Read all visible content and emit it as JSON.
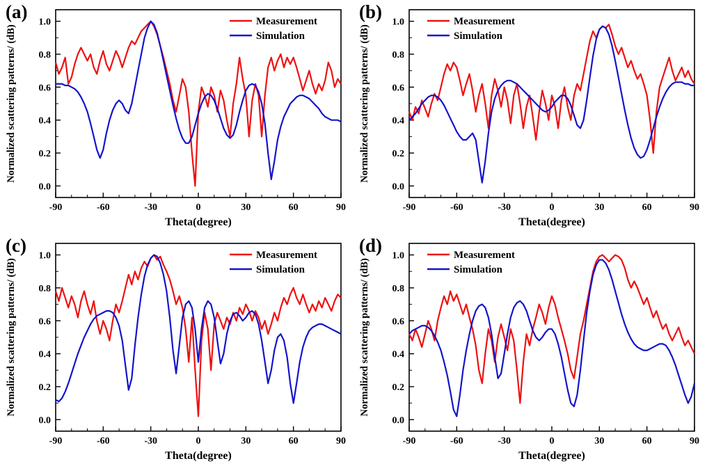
{
  "figure": {
    "background": "#ffffff",
    "text_color": "#000000"
  },
  "chart_data": [
    {
      "type": "line",
      "panel_label": "(a)",
      "xlabel": "Theta(degree)",
      "ylabel": "Normalized scattering patterns/ (dB)",
      "xlim": [
        -90,
        90
      ],
      "ylim": [
        -0.07,
        1.07
      ],
      "xticks": [
        -90,
        -60,
        -30,
        0,
        30,
        60,
        90
      ],
      "yticks": [
        "0.0",
        "0.2",
        "0.4",
        "0.6",
        "0.8",
        "1.0"
      ],
      "ytick_values": [
        0,
        0.2,
        0.4,
        0.6,
        0.8,
        1.0
      ],
      "grid": false,
      "legend_position": "top-right",
      "legend": [
        "Measurement",
        "Simulation"
      ],
      "series": [
        {
          "name": "Measurement",
          "color": "#ee1111",
          "x_start": -90,
          "x_step": 2,
          "y": [
            0.75,
            0.68,
            0.72,
            0.78,
            0.62,
            0.66,
            0.74,
            0.8,
            0.84,
            0.8,
            0.76,
            0.8,
            0.72,
            0.68,
            0.76,
            0.82,
            0.74,
            0.7,
            0.76,
            0.82,
            0.78,
            0.72,
            0.78,
            0.84,
            0.88,
            0.86,
            0.9,
            0.94,
            0.96,
            0.98,
            1.0,
            0.97,
            0.92,
            0.85,
            0.78,
            0.7,
            0.62,
            0.52,
            0.45,
            0.55,
            0.65,
            0.6,
            0.45,
            0.2,
            0.0,
            0.45,
            0.6,
            0.55,
            0.48,
            0.6,
            0.55,
            0.45,
            0.58,
            0.52,
            0.4,
            0.3,
            0.5,
            0.62,
            0.78,
            0.65,
            0.55,
            0.3,
            0.52,
            0.62,
            0.55,
            0.3,
            0.55,
            0.72,
            0.78,
            0.7,
            0.76,
            0.8,
            0.72,
            0.78,
            0.74,
            0.78,
            0.72,
            0.65,
            0.58,
            0.64,
            0.7,
            0.62,
            0.56,
            0.62,
            0.58,
            0.64,
            0.75,
            0.7,
            0.6,
            0.65,
            0.62
          ]
        },
        {
          "name": "Simulation",
          "color": "#1414cc",
          "x_start": -90,
          "x_step": 2,
          "y": [
            0.62,
            0.62,
            0.62,
            0.61,
            0.61,
            0.6,
            0.59,
            0.57,
            0.54,
            0.5,
            0.45,
            0.38,
            0.3,
            0.22,
            0.17,
            0.22,
            0.32,
            0.4,
            0.46,
            0.5,
            0.52,
            0.5,
            0.46,
            0.44,
            0.5,
            0.6,
            0.7,
            0.8,
            0.9,
            0.96,
            1.0,
            0.98,
            0.93,
            0.85,
            0.76,
            0.67,
            0.58,
            0.49,
            0.41,
            0.34,
            0.29,
            0.26,
            0.26,
            0.3,
            0.37,
            0.44,
            0.5,
            0.54,
            0.56,
            0.55,
            0.52,
            0.47,
            0.41,
            0.35,
            0.31,
            0.29,
            0.31,
            0.37,
            0.45,
            0.52,
            0.58,
            0.61,
            0.62,
            0.61,
            0.57,
            0.5,
            0.38,
            0.2,
            0.04,
            0.15,
            0.28,
            0.36,
            0.42,
            0.46,
            0.5,
            0.52,
            0.54,
            0.55,
            0.55,
            0.54,
            0.53,
            0.51,
            0.49,
            0.47,
            0.44,
            0.42,
            0.41,
            0.4,
            0.4,
            0.4,
            0.39
          ]
        }
      ]
    },
    {
      "type": "line",
      "panel_label": "(b)",
      "xlabel": "Theta(degree)",
      "ylabel": "Normalized scattering patterns/ (dB)",
      "xlim": [
        -90,
        90
      ],
      "ylim": [
        -0.07,
        1.07
      ],
      "xticks": [
        -90,
        -60,
        -30,
        0,
        30,
        60,
        90
      ],
      "yticks": [
        "0.0",
        "0.2",
        "0.4",
        "0.6",
        "0.8",
        "1.0"
      ],
      "ytick_values": [
        0,
        0.2,
        0.4,
        0.6,
        0.8,
        1.0
      ],
      "grid": false,
      "legend_position": "top-left",
      "legend": [
        "Measurement",
        "Simulation"
      ],
      "series": [
        {
          "name": "Measurement",
          "color": "#ee1111",
          "x_start": -90,
          "x_step": 2,
          "y": [
            0.45,
            0.4,
            0.48,
            0.44,
            0.52,
            0.47,
            0.42,
            0.5,
            0.56,
            0.52,
            0.6,
            0.68,
            0.74,
            0.7,
            0.75,
            0.72,
            0.64,
            0.55,
            0.62,
            0.68,
            0.58,
            0.45,
            0.55,
            0.62,
            0.5,
            0.35,
            0.55,
            0.65,
            0.58,
            0.48,
            0.6,
            0.52,
            0.38,
            0.55,
            0.62,
            0.5,
            0.35,
            0.48,
            0.55,
            0.42,
            0.28,
            0.45,
            0.58,
            0.5,
            0.4,
            0.55,
            0.48,
            0.35,
            0.52,
            0.6,
            0.48,
            0.4,
            0.55,
            0.62,
            0.58,
            0.68,
            0.78,
            0.88,
            0.94,
            0.9,
            0.95,
            0.97,
            0.96,
            0.98,
            0.92,
            0.85,
            0.8,
            0.84,
            0.78,
            0.72,
            0.76,
            0.7,
            0.65,
            0.68,
            0.62,
            0.55,
            0.4,
            0.2,
            0.45,
            0.6,
            0.66,
            0.72,
            0.78,
            0.7,
            0.64,
            0.68,
            0.72,
            0.66,
            0.7,
            0.65,
            0.62
          ]
        },
        {
          "name": "Simulation",
          "color": "#1414cc",
          "x_start": -90,
          "x_step": 2,
          "y": [
            0.4,
            0.42,
            0.44,
            0.47,
            0.5,
            0.52,
            0.54,
            0.55,
            0.55,
            0.54,
            0.52,
            0.49,
            0.45,
            0.41,
            0.37,
            0.33,
            0.3,
            0.28,
            0.28,
            0.3,
            0.32,
            0.28,
            0.15,
            0.02,
            0.15,
            0.32,
            0.45,
            0.53,
            0.58,
            0.61,
            0.63,
            0.64,
            0.64,
            0.63,
            0.62,
            0.6,
            0.58,
            0.56,
            0.54,
            0.52,
            0.5,
            0.48,
            0.46,
            0.45,
            0.46,
            0.48,
            0.51,
            0.53,
            0.55,
            0.55,
            0.53,
            0.49,
            0.43,
            0.37,
            0.35,
            0.4,
            0.52,
            0.66,
            0.79,
            0.89,
            0.95,
            0.97,
            0.96,
            0.92,
            0.85,
            0.76,
            0.66,
            0.56,
            0.46,
            0.37,
            0.29,
            0.23,
            0.19,
            0.17,
            0.18,
            0.22,
            0.28,
            0.35,
            0.42,
            0.48,
            0.53,
            0.57,
            0.6,
            0.62,
            0.63,
            0.63,
            0.63,
            0.62,
            0.62,
            0.61,
            0.61
          ]
        }
      ]
    },
    {
      "type": "line",
      "panel_label": "(c)",
      "xlabel": "Theta(degree)",
      "ylabel": "Normalized scattering patterns/ (dB)",
      "xlim": [
        -90,
        90
      ],
      "ylim": [
        -0.07,
        1.07
      ],
      "xticks": [
        -90,
        -60,
        -30,
        0,
        30,
        60,
        90
      ],
      "yticks": [
        "0.0",
        "0.2",
        "0.4",
        "0.6",
        "0.8",
        "1.0"
      ],
      "ytick_values": [
        0,
        0.2,
        0.4,
        0.6,
        0.8,
        1.0
      ],
      "grid": false,
      "legend_position": "top-right",
      "legend": [
        "Measurement",
        "Simulation"
      ],
      "series": [
        {
          "name": "Measurement",
          "color": "#ee1111",
          "x_start": -90,
          "x_step": 2,
          "y": [
            0.78,
            0.72,
            0.8,
            0.74,
            0.68,
            0.75,
            0.7,
            0.62,
            0.72,
            0.78,
            0.7,
            0.64,
            0.72,
            0.6,
            0.52,
            0.6,
            0.55,
            0.48,
            0.6,
            0.7,
            0.65,
            0.72,
            0.8,
            0.88,
            0.82,
            0.9,
            0.85,
            0.92,
            0.96,
            0.93,
            0.98,
            1.0,
            0.97,
            0.99,
            0.94,
            0.9,
            0.85,
            0.78,
            0.7,
            0.75,
            0.68,
            0.55,
            0.35,
            0.62,
            0.3,
            0.02,
            0.48,
            0.65,
            0.55,
            0.3,
            0.58,
            0.65,
            0.6,
            0.55,
            0.62,
            0.58,
            0.65,
            0.6,
            0.68,
            0.64,
            0.7,
            0.66,
            0.6,
            0.66,
            0.62,
            0.55,
            0.6,
            0.52,
            0.58,
            0.65,
            0.6,
            0.68,
            0.74,
            0.7,
            0.76,
            0.8,
            0.74,
            0.7,
            0.76,
            0.7,
            0.65,
            0.7,
            0.66,
            0.72,
            0.68,
            0.74,
            0.7,
            0.66,
            0.72,
            0.76,
            0.74
          ]
        },
        {
          "name": "Simulation",
          "color": "#1414cc",
          "x_start": -90,
          "x_step": 2,
          "y": [
            0.12,
            0.11,
            0.13,
            0.17,
            0.22,
            0.28,
            0.34,
            0.4,
            0.45,
            0.5,
            0.54,
            0.58,
            0.61,
            0.63,
            0.64,
            0.65,
            0.66,
            0.66,
            0.65,
            0.62,
            0.57,
            0.48,
            0.33,
            0.18,
            0.25,
            0.45,
            0.62,
            0.76,
            0.87,
            0.94,
            0.98,
            1.0,
            0.99,
            0.95,
            0.88,
            0.78,
            0.62,
            0.42,
            0.28,
            0.45,
            0.62,
            0.7,
            0.72,
            0.68,
            0.55,
            0.35,
            0.55,
            0.68,
            0.72,
            0.7,
            0.62,
            0.48,
            0.34,
            0.4,
            0.52,
            0.6,
            0.64,
            0.65,
            0.63,
            0.6,
            0.62,
            0.65,
            0.66,
            0.64,
            0.58,
            0.48,
            0.35,
            0.22,
            0.3,
            0.42,
            0.5,
            0.52,
            0.48,
            0.38,
            0.22,
            0.1,
            0.22,
            0.35,
            0.44,
            0.5,
            0.54,
            0.56,
            0.57,
            0.58,
            0.58,
            0.57,
            0.56,
            0.55,
            0.54,
            0.53,
            0.52
          ]
        }
      ]
    },
    {
      "type": "line",
      "panel_label": "(d)",
      "xlabel": "Theta(degree)",
      "ylabel": "Normalized scattering patterns/ (dB)",
      "xlim": [
        -90,
        90
      ],
      "ylim": [
        -0.07,
        1.07
      ],
      "xticks": [
        -90,
        -60,
        -30,
        0,
        30,
        60,
        90
      ],
      "yticks": [
        "0.0",
        "0.2",
        "0.4",
        "0.6",
        "0.8",
        "1.0"
      ],
      "ytick_values": [
        0,
        0.2,
        0.4,
        0.6,
        0.8,
        1.0
      ],
      "grid": false,
      "legend_position": "top-left",
      "legend": [
        "Measurement",
        "Simulation"
      ],
      "series": [
        {
          "name": "Measurement",
          "color": "#ee1111",
          "x_start": -90,
          "x_step": 2,
          "y": [
            0.52,
            0.48,
            0.55,
            0.5,
            0.44,
            0.52,
            0.6,
            0.55,
            0.48,
            0.6,
            0.68,
            0.75,
            0.7,
            0.78,
            0.72,
            0.76,
            0.7,
            0.64,
            0.7,
            0.62,
            0.55,
            0.45,
            0.3,
            0.22,
            0.4,
            0.55,
            0.48,
            0.35,
            0.5,
            0.58,
            0.5,
            0.42,
            0.55,
            0.48,
            0.3,
            0.1,
            0.35,
            0.52,
            0.45,
            0.55,
            0.62,
            0.7,
            0.65,
            0.58,
            0.68,
            0.75,
            0.7,
            0.62,
            0.55,
            0.48,
            0.4,
            0.3,
            0.25,
            0.38,
            0.52,
            0.6,
            0.7,
            0.8,
            0.9,
            0.96,
            0.99,
            1.0,
            0.98,
            0.96,
            0.98,
            1.0,
            0.99,
            0.97,
            0.92,
            0.85,
            0.8,
            0.84,
            0.8,
            0.75,
            0.7,
            0.74,
            0.68,
            0.62,
            0.66,
            0.6,
            0.55,
            0.58,
            0.52,
            0.48,
            0.52,
            0.56,
            0.5,
            0.45,
            0.48,
            0.44,
            0.4
          ]
        },
        {
          "name": "Simulation",
          "color": "#1414cc",
          "x_start": -90,
          "x_step": 2,
          "y": [
            0.52,
            0.54,
            0.55,
            0.56,
            0.57,
            0.57,
            0.56,
            0.54,
            0.51,
            0.47,
            0.42,
            0.35,
            0.27,
            0.17,
            0.06,
            0.02,
            0.15,
            0.3,
            0.42,
            0.52,
            0.6,
            0.66,
            0.69,
            0.7,
            0.68,
            0.62,
            0.52,
            0.38,
            0.25,
            0.28,
            0.4,
            0.52,
            0.62,
            0.68,
            0.71,
            0.72,
            0.7,
            0.66,
            0.6,
            0.54,
            0.5,
            0.48,
            0.5,
            0.53,
            0.55,
            0.55,
            0.52,
            0.46,
            0.38,
            0.28,
            0.18,
            0.1,
            0.08,
            0.15,
            0.3,
            0.48,
            0.65,
            0.78,
            0.88,
            0.94,
            0.97,
            0.97,
            0.95,
            0.91,
            0.85,
            0.78,
            0.71,
            0.64,
            0.58,
            0.53,
            0.49,
            0.46,
            0.44,
            0.43,
            0.42,
            0.42,
            0.43,
            0.44,
            0.45,
            0.46,
            0.46,
            0.45,
            0.42,
            0.38,
            0.33,
            0.27,
            0.21,
            0.15,
            0.1,
            0.14,
            0.22
          ]
        }
      ]
    }
  ]
}
